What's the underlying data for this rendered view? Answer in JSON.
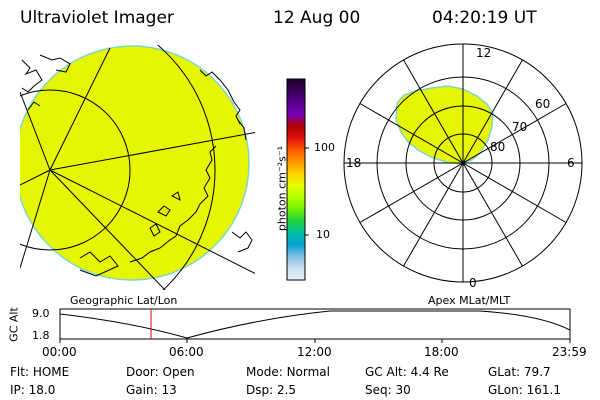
{
  "header": {
    "instrument": "Ultraviolet Imager",
    "date": "12 Aug 00",
    "time": "04:20:19 UT"
  },
  "colorbar": {
    "ticks": [
      "100",
      "10"
    ],
    "unit_label": "photon cm⁻²s⁻¹",
    "colors": [
      "#1a0028",
      "#3a0058",
      "#5a0090",
      "#7800b4",
      "#b00000",
      "#e01010",
      "#ff5a00",
      "#ff9600",
      "#ffd000",
      "#e6ff00",
      "#b4ff00",
      "#70f000",
      "#20d040",
      "#00c0a0",
      "#00a0d0",
      "#80c0e0",
      "#c8e0f0",
      "#e8f0f4"
    ]
  },
  "left_panel": {
    "label": "Geographic Lat/Lon",
    "fill_color": "#e6f500",
    "edge_color": "#7fd7c9"
  },
  "right_panel": {
    "label": "Apex MLat/MLT",
    "mlt_labels": {
      "top": "12",
      "left": "18",
      "right": "6",
      "bottom": "0"
    },
    "mlat_labels": [
      "60",
      "70",
      "80"
    ],
    "fill_color": "#e6f500",
    "edge_color": "#7fd7c9"
  },
  "altitude_plot": {
    "ylabel": "GC Alt",
    "y_ticks": [
      "9.0",
      "1.8"
    ],
    "x_ticks": [
      "00:00",
      "06:00",
      "12:00",
      "18:00",
      "23:59"
    ],
    "marker_time": "04:20:19",
    "marker_color": "#e00000"
  },
  "info": {
    "row1": [
      {
        "label": "Flt:",
        "value": "HOME"
      },
      {
        "label": "Door:",
        "value": "Open"
      },
      {
        "label": "Mode:",
        "value": "Normal"
      },
      {
        "label": "GC Alt:",
        "value": "4.4 Re"
      },
      {
        "label": "GLat:",
        "value": "79.7"
      }
    ],
    "row2": [
      {
        "label": "IP:",
        "value": "18.0"
      },
      {
        "label": "Gain:",
        "value": "13"
      },
      {
        "label": "Dsp:",
        "value": "2.5"
      },
      {
        "label": "Seq:",
        "value": "30"
      },
      {
        "label": "GLon:",
        "value": "161.1"
      }
    ]
  }
}
